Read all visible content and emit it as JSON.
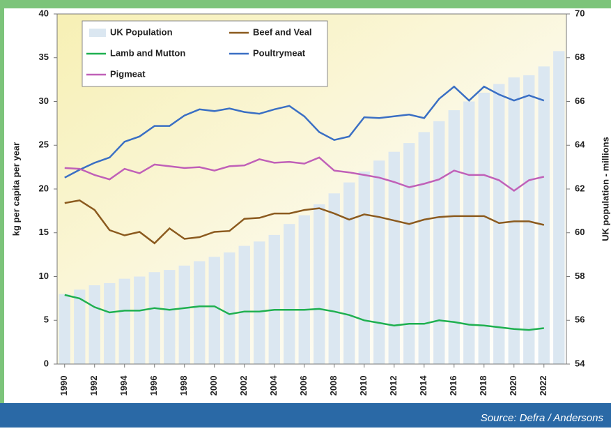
{
  "chart_data": {
    "type": "line",
    "x": [
      1990,
      1991,
      1992,
      1993,
      1994,
      1995,
      1996,
      1997,
      1998,
      1999,
      2000,
      2001,
      2002,
      2003,
      2004,
      2005,
      2006,
      2007,
      2008,
      2009,
      2010,
      2011,
      2012,
      2013,
      2014,
      2015,
      2016,
      2017,
      2018,
      2019,
      2020,
      2021,
      2022,
      2023
    ],
    "xlim": [
      1989.5,
      2023.5
    ],
    "xticks": [
      1990,
      1992,
      1994,
      1996,
      1998,
      2000,
      2002,
      2004,
      2006,
      2008,
      2010,
      2012,
      2014,
      2016,
      2018,
      2020,
      2022
    ],
    "ylabel": "kg per capita per year",
    "ylim": [
      0,
      40
    ],
    "yticks": [
      0,
      5,
      10,
      15,
      20,
      25,
      30,
      35,
      40
    ],
    "y2label": "UK population - millions",
    "y2lim": [
      54,
      70
    ],
    "y2ticks": [
      54,
      56,
      58,
      60,
      62,
      64,
      66,
      68,
      70
    ],
    "series": [
      {
        "name": "UK Population",
        "type": "bar",
        "axis": "y2",
        "color": "#dbe7f1",
        "values": [
          57.2,
          57.4,
          57.6,
          57.7,
          57.9,
          58.0,
          58.2,
          58.3,
          58.5,
          58.7,
          58.9,
          59.1,
          59.4,
          59.6,
          59.9,
          60.4,
          60.8,
          61.3,
          61.8,
          62.3,
          62.8,
          63.3,
          63.7,
          64.1,
          64.6,
          65.1,
          65.6,
          66.0,
          66.4,
          66.8,
          67.1,
          67.2,
          67.6,
          68.3
        ]
      },
      {
        "name": "Beef and Veal",
        "color": "#8b5a1e",
        "values": [
          18.4,
          18.7,
          17.6,
          15.3,
          14.7,
          15.1,
          13.8,
          15.5,
          14.3,
          14.5,
          15.1,
          15.2,
          16.6,
          16.7,
          17.2,
          17.2,
          17.6,
          17.8,
          17.2,
          16.5,
          17.1,
          16.8,
          16.4,
          16.0,
          16.5,
          16.8,
          16.9,
          16.9,
          16.9,
          16.1,
          16.3,
          16.3,
          15.9,
          null
        ]
      },
      {
        "name": "Lamb and Mutton",
        "color": "#1fb050",
        "values": [
          7.9,
          7.5,
          6.5,
          5.9,
          6.1,
          6.1,
          6.4,
          6.2,
          6.4,
          6.6,
          6.6,
          5.7,
          6.0,
          6.0,
          6.2,
          6.2,
          6.2,
          6.3,
          6.0,
          5.6,
          5.0,
          4.7,
          4.4,
          4.6,
          4.6,
          5.0,
          4.8,
          4.5,
          4.4,
          4.2,
          4.0,
          3.9,
          4.1,
          null
        ]
      },
      {
        "name": "Poultrymeat",
        "color": "#3a6fc4",
        "values": [
          21.3,
          22.2,
          23.0,
          23.6,
          25.4,
          26.0,
          27.2,
          27.2,
          28.4,
          29.1,
          28.9,
          29.2,
          28.8,
          28.6,
          29.1,
          29.5,
          28.3,
          26.5,
          25.6,
          26.0,
          28.2,
          28.1,
          28.3,
          28.5,
          28.1,
          30.3,
          31.7,
          30.1,
          31.7,
          30.8,
          30.1,
          30.7,
          30.1,
          null
        ]
      },
      {
        "name": "Pigmeat",
        "color": "#c060b8",
        "values": [
          22.4,
          22.3,
          21.6,
          21.1,
          22.3,
          21.8,
          22.8,
          22.6,
          22.4,
          22.5,
          22.1,
          22.6,
          22.7,
          23.4,
          23.0,
          23.1,
          22.9,
          23.6,
          22.1,
          21.9,
          21.6,
          21.3,
          20.8,
          20.2,
          20.6,
          21.1,
          22.1,
          21.6,
          21.6,
          21.0,
          19.8,
          21.0,
          21.4,
          null
        ]
      }
    ],
    "source": "Source: Defra / Andersons"
  }
}
